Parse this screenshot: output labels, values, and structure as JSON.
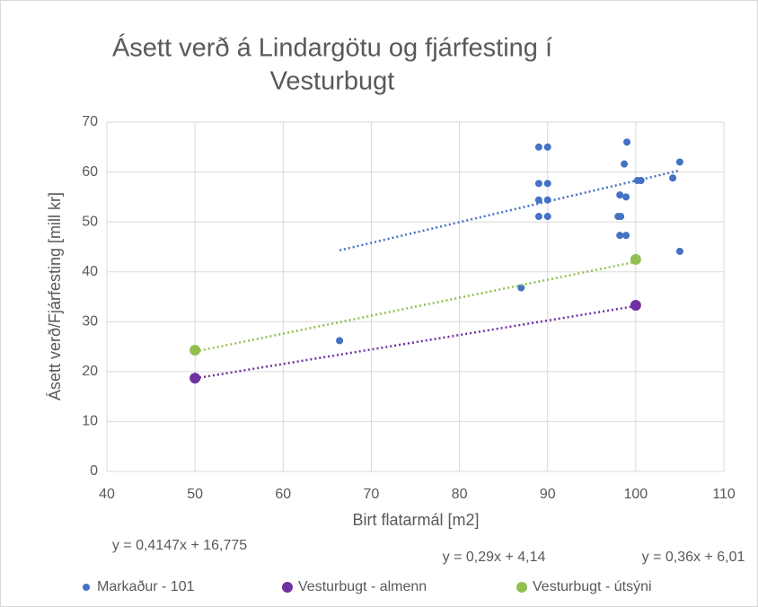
{
  "chart_data": {
    "type": "scatter",
    "title": [
      "Ásett verð á Lindargötu og fjárfesting í",
      "Vesturbugt"
    ],
    "x_label": "Birt flatarmál [m2]",
    "y_label": "Ásett verð/Fjárfesting  [mill kr]",
    "xlim": [
      40,
      110
    ],
    "xticks": [
      40,
      50,
      60,
      70,
      80,
      90,
      100,
      110
    ],
    "ylim": [
      0,
      70
    ],
    "yticks": [
      0,
      10,
      20,
      30,
      40,
      50,
      60,
      70
    ],
    "grid": true,
    "legend": "bottom",
    "series": [
      {
        "name": "Markaður - 101",
        "color": "#4472c4",
        "x": [
          66.4,
          87,
          89,
          90,
          89,
          90,
          89,
          90,
          89,
          90,
          99,
          98.7,
          98.2,
          98.9,
          98,
          98.3,
          98.2,
          98.9,
          100.2,
          100.6,
          104.2,
          105,
          105
        ],
        "values": [
          26.2,
          36.8,
          65,
          65,
          57.7,
          57.7,
          54.4,
          54.4,
          51.1,
          51.1,
          66,
          61.6,
          55.4,
          55,
          51.1,
          51.1,
          47.3,
          47.3,
          58.3,
          58.3,
          58.8,
          62,
          44.1
        ],
        "trendline": {
          "slope": 0.4147,
          "intercept": 16.775,
          "label": "y = 0,4147x + 16,775"
        }
      },
      {
        "name": "Vesturbugt - almenn",
        "color": "#7030a0",
        "x": [
          50,
          100
        ],
        "values": [
          18.7,
          33.3
        ],
        "trendline": {
          "slope": 0.29,
          "intercept": 4.14,
          "label": "y = 0,29x + 4,14"
        }
      },
      {
        "name": "Vesturbugt - útsýni",
        "color": "#92c050",
        "x": [
          50,
          100
        ],
        "values": [
          24.3,
          42.5
        ],
        "trendline": {
          "slope": 0.36,
          "intercept": 6.01,
          "label": "y = 0,36x + 6,01"
        }
      }
    ]
  }
}
